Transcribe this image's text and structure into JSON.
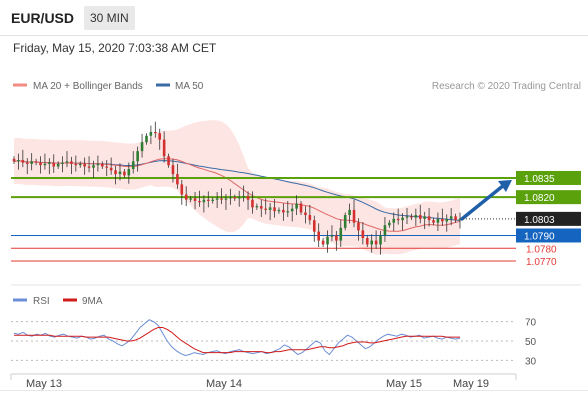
{
  "header": {
    "symbol": "EUR/USD",
    "interval": "30 MIN"
  },
  "datetime": "Friday, May 15, 2020 7:03:38 AM CET",
  "legend": {
    "ma20_bb": "MA 20 + Bollinger Bands",
    "ma50": "MA 50",
    "credit": "Research © 2020 Trading Central"
  },
  "rsi_legend": {
    "rsi": "RSI",
    "ma9": "9MA"
  },
  "colors": {
    "up": "#2e7d32",
    "down": "#d32f2f",
    "support_resistance_green": "#5ba10b",
    "ma50": "#3b6ba5",
    "ma20": "#e06666",
    "band_fill": "#fde5e3",
    "current_price_box": "#222222",
    "blue_level": "#1565c0",
    "red_level": "#e53935",
    "arrow": "#1f5fa8",
    "rsi_line": "#6b8ed6",
    "rsi_ma": "#d11a1a"
  },
  "chart_data": [
    {
      "type": "candlestick",
      "title": "",
      "ylim": [
        1.0763,
        1.0896
      ],
      "x_labels": [
        "May 13",
        "May 14",
        "May 15",
        "May 19"
      ],
      "current_price": "1.0803",
      "levels": [
        {
          "label": "1.0835",
          "value": 1.0835,
          "kind": "resistance"
        },
        {
          "label": "1.0820",
          "value": 1.082,
          "kind": "resistance"
        },
        {
          "label": "1.0790",
          "value": 1.079,
          "kind": "pivot"
        },
        {
          "label": "1.0780",
          "value": 1.078,
          "kind": "support"
        },
        {
          "label": "1.0770",
          "value": 1.077,
          "kind": "support"
        }
      ],
      "arrow": {
        "from_price": 1.0803,
        "to_price": 1.0835,
        "direction": "up"
      },
      "close_path": [
        1.0848,
        1.0849,
        1.0847,
        1.0846,
        1.0848,
        1.0847,
        1.0845,
        1.0846,
        1.0847,
        1.0844,
        1.0846,
        1.0847,
        1.0848,
        1.0846,
        1.0845,
        1.0846,
        1.0844,
        1.0843,
        1.0845,
        1.0846,
        1.0844,
        1.0843,
        1.0841,
        1.0838,
        1.084,
        1.0837,
        1.0842,
        1.0848,
        1.0856,
        1.0863,
        1.0868,
        1.0871,
        1.087,
        1.0865,
        1.0852,
        1.0845,
        1.0838,
        1.083,
        1.0822,
        1.0818,
        1.0819,
        1.0817,
        1.0816,
        1.0818,
        1.0817,
        1.0818,
        1.0819,
        1.0818,
        1.0819,
        1.082,
        1.0819,
        1.082,
        1.0821,
        1.0818,
        1.0812,
        1.0813,
        1.0811,
        1.081,
        1.0812,
        1.0809,
        1.081,
        1.0808,
        1.0809,
        1.0811,
        1.0815,
        1.0808,
        1.0806,
        1.0802,
        1.0793,
        1.0786,
        1.0783,
        1.0789,
        1.079,
        1.0786,
        1.0796,
        1.0806,
        1.081,
        1.08,
        1.0794,
        1.0788,
        1.0783,
        1.0786,
        1.0783,
        1.079,
        1.0798,
        1.08,
        1.0803,
        1.0802,
        1.0804,
        1.0805,
        1.0804,
        1.0806,
        1.0803,
        1.0805,
        1.0802,
        1.08,
        1.0803,
        1.0801,
        1.0803,
        1.0805,
        1.0802,
        1.0803
      ]
    },
    {
      "type": "line",
      "title": "",
      "ylim": [
        20,
        80
      ],
      "ticks": [
        "70",
        "50",
        "30"
      ],
      "series": [
        {
          "name": "RSI",
          "values": [
            58,
            57,
            59,
            56,
            55,
            57,
            56,
            58,
            55,
            54,
            56,
            57,
            55,
            54,
            53,
            55,
            54,
            52,
            53,
            55,
            56,
            52,
            50,
            47,
            45,
            48,
            52,
            58,
            64,
            68,
            72,
            70,
            66,
            58,
            50,
            44,
            40,
            37,
            35,
            36,
            38,
            37,
            36,
            38,
            39,
            40,
            38,
            37,
            39,
            40,
            41,
            39,
            38,
            37,
            38,
            39,
            37,
            38,
            40,
            42,
            46,
            44,
            40,
            36,
            38,
            42,
            46,
            50,
            48,
            40,
            36,
            42,
            48,
            52,
            56,
            54,
            50,
            46,
            42,
            44,
            48,
            52,
            55,
            57,
            56,
            55,
            57,
            56,
            54,
            55,
            56,
            53,
            54,
            55,
            53,
            52,
            54,
            53,
            52,
            53
          ]
        },
        {
          "name": "9MA",
          "values": [
            56,
            56,
            56,
            56,
            56,
            56,
            56,
            56,
            56,
            55,
            55,
            55,
            55,
            55,
            55,
            55,
            54,
            54,
            54,
            54,
            54,
            54,
            53,
            52,
            51,
            50,
            50,
            51,
            53,
            56,
            59,
            62,
            64,
            64,
            62,
            59,
            55,
            51,
            48,
            45,
            42,
            40,
            38,
            38,
            38,
            38,
            38,
            38,
            38,
            39,
            39,
            39,
            39,
            39,
            39,
            39,
            38,
            38,
            39,
            39,
            40,
            41,
            41,
            41,
            41,
            41,
            42,
            43,
            44,
            44,
            43,
            43,
            44,
            45,
            47,
            48,
            49,
            49,
            49,
            48,
            48,
            49,
            50,
            51,
            52,
            53,
            54,
            55,
            55,
            55,
            55,
            55,
            55,
            55,
            55,
            55,
            54,
            54,
            54,
            54
          ]
        }
      ]
    }
  ]
}
